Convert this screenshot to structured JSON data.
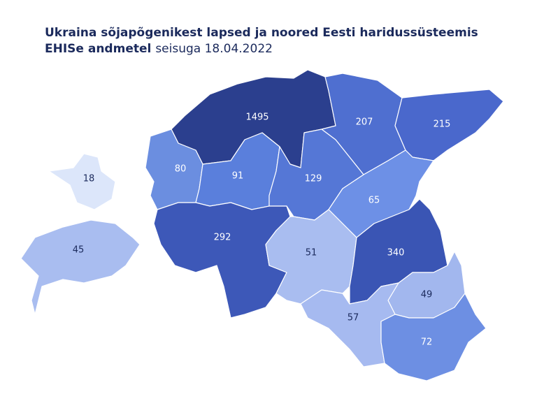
{
  "header": {
    "title_lines": [
      "Ukraina sõjapõgenikest lapsed ja noored Eesti haridussüsteemis",
      "EHISe andmetel"
    ],
    "subtitle": "seisuga 18.04.2022"
  },
  "map": {
    "regions": [
      {
        "value": 1495,
        "color": "#2b3f8e"
      },
      {
        "value": 207,
        "color": "#4f6fd0"
      },
      {
        "value": 215,
        "color": "#4a68cc"
      },
      {
        "value": 18,
        "color": "#dce6fa"
      },
      {
        "value": 80,
        "color": "#6b8ee0"
      },
      {
        "value": 91,
        "color": "#5a7fdc"
      },
      {
        "value": 129,
        "color": "#5577d6"
      },
      {
        "value": 65,
        "color": "#6d90e6"
      },
      {
        "value": 45,
        "color": "#a9bdf0"
      },
      {
        "value": 292,
        "color": "#3d58b8"
      },
      {
        "value": 51,
        "color": "#a9bdf0"
      },
      {
        "value": 340,
        "color": "#3a55b4"
      },
      {
        "value": 49,
        "color": "#a2b7ee"
      },
      {
        "value": 57,
        "color": "#a6baf0"
      },
      {
        "value": 72,
        "color": "#6d8fe3"
      }
    ]
  }
}
